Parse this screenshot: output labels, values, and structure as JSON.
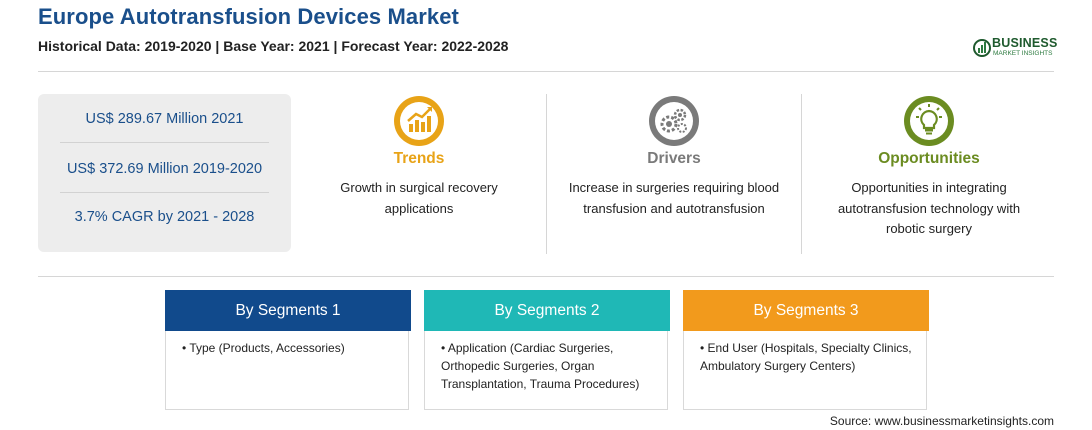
{
  "header": {
    "title": "Europe Autotransfusion Devices Market",
    "subtitle": "Historical Data: 2019-2020 | Base Year: 2021 | Forecast Year: 2022-2028"
  },
  "logo": {
    "name": "BUSINESS",
    "tagline": "MARKET INSIGHTS",
    "color": "#1f5a2e"
  },
  "stats": [
    "US$ 289.67 Million 2021",
    "US$ 372.69 Million 2019-2020",
    "3.7% CAGR by 2021 - 2028"
  ],
  "columns": [
    {
      "title": "Trends",
      "color": "#e8a317",
      "icon": "growth-chart-icon",
      "description": "Growth in surgical recovery applications"
    },
    {
      "title": "Drivers",
      "color": "#7a7a7a",
      "icon": "gears-icon",
      "description": "Increase in surgeries requiring blood transfusion and autotransfusion"
    },
    {
      "title": "Opportunities",
      "color": "#6b8c21",
      "icon": "lightbulb-icon",
      "description": "Opportunities in integrating autotransfusion technology with robotic surgery"
    }
  ],
  "segments": [
    {
      "label": "By Segments 1",
      "color": "#114a8c",
      "body": "• Type (Products, Accessories)"
    },
    {
      "label": "By Segments 2",
      "color": "#1fb8b6",
      "body": "• Application (Cardiac Surgeries, Orthopedic Surgeries, Organ Transplantation, Trauma Procedures)"
    },
    {
      "label": "By Segments 3",
      "color": "#f29a1c",
      "body": "• End User (Hospitals, Specialty Clinics, Ambulatory Surgery Centers)"
    }
  ],
  "source": "Source: www.businessmarketinsights.com"
}
